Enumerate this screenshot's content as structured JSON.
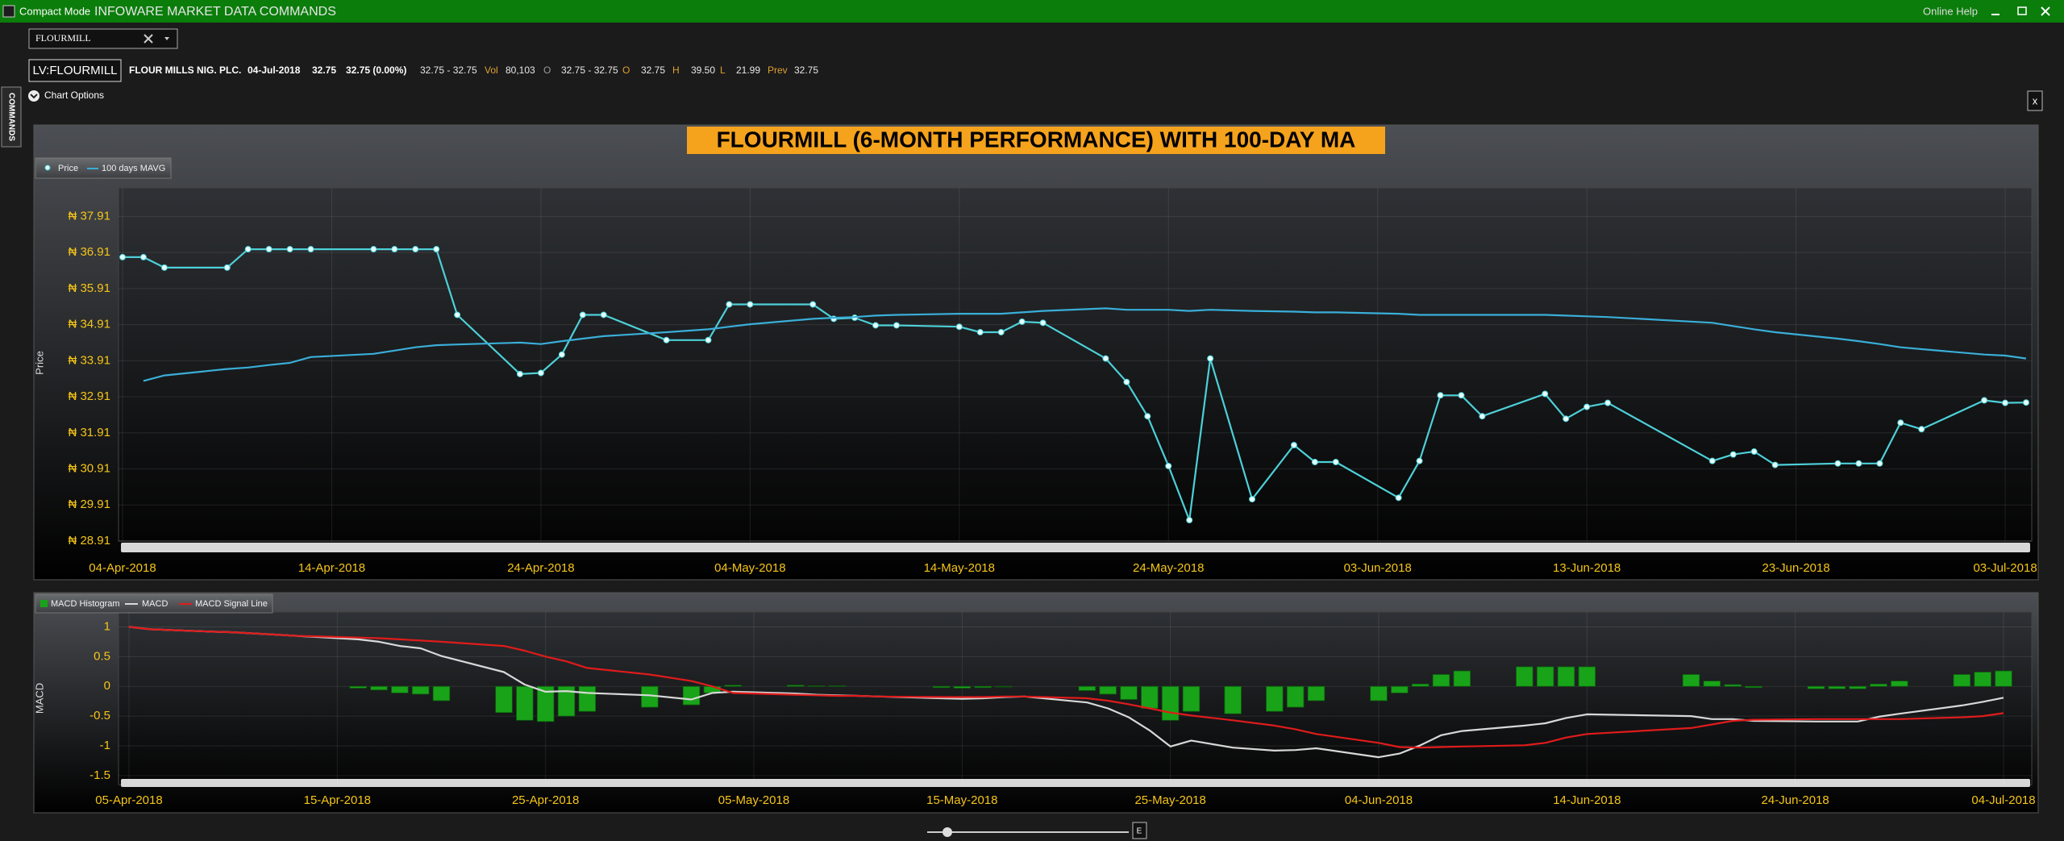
{
  "window": {
    "compact_mode": "Compact Mode",
    "title": "INFOWARE MARKET DATA COMMANDS",
    "online_help": "Online Help"
  },
  "search": {
    "value": "FLOURMILL"
  },
  "quote": {
    "symbol": "LV:FLOURMILL",
    "name": "FLOUR MILLS NIG. PLC.",
    "date": "04-Jul-2018",
    "price": "32.75",
    "change": "32.75 (0.00%)",
    "range": "32.75 - 32.75",
    "vol_label": "Vol",
    "volume": "80,103",
    "bid_ask_label": "O",
    "bid_ask": "32.75 - 32.75",
    "open_label": "O",
    "open": "32.75",
    "high_label": "H",
    "high": "39.50",
    "low_label": "L",
    "low": "21.99",
    "prev_label": "Prev",
    "prev": "32.75"
  },
  "chart_options": "Chart Options",
  "commands_tab": "COMMANDS",
  "close_button": "x",
  "slider_button": "E",
  "chart_data": [
    {
      "type": "line",
      "title": "FLOURMILL (6-MONTH PERFORMANCE) WITH 100-DAY MA",
      "y_label": "Price",
      "x": [
        "2018-04-04",
        "2018-04-05",
        "2018-04-06",
        "2018-04-09",
        "2018-04-10",
        "2018-04-11",
        "2018-04-12",
        "2018-04-13",
        "2018-04-16",
        "2018-04-17",
        "2018-04-18",
        "2018-04-19",
        "2018-04-20",
        "2018-04-23",
        "2018-04-24",
        "2018-04-25",
        "2018-04-26",
        "2018-04-27",
        "2018-04-30",
        "2018-05-02",
        "2018-05-03",
        "2018-05-04",
        "2018-05-07",
        "2018-05-08",
        "2018-05-09",
        "2018-05-10",
        "2018-05-11",
        "2018-05-14",
        "2018-05-15",
        "2018-05-16",
        "2018-05-17",
        "2018-05-18",
        "2018-05-21",
        "2018-05-22",
        "2018-05-23",
        "2018-05-24",
        "2018-05-25",
        "2018-05-26",
        "2018-05-28",
        "2018-05-30",
        "2018-05-31",
        "2018-06-01",
        "2018-06-04",
        "2018-06-05",
        "2018-06-06",
        "2018-06-07",
        "2018-06-08",
        "2018-06-11",
        "2018-06-12",
        "2018-06-13",
        "2018-06-14",
        "2018-06-19",
        "2018-06-20",
        "2018-06-21",
        "2018-06-22",
        "2018-06-25",
        "2018-06-26",
        "2018-06-27",
        "2018-06-28",
        "2018-06-29",
        "2018-07-02",
        "2018-07-03",
        "2018-07-04"
      ],
      "series": [
        {
          "name": "Price",
          "color": "#4dd0d8",
          "marker_color": "#e6ffff",
          "values": [
            36.78,
            36.78,
            36.49,
            36.49,
            37,
            37,
            37,
            37,
            37,
            37,
            37,
            37,
            35.18,
            33.54,
            33.57,
            34.08,
            35.18,
            35.18,
            34.48,
            34.48,
            35.47,
            35.47,
            35.47,
            35.07,
            35.1,
            34.89,
            34.89,
            34.85,
            34.7,
            34.7,
            34.99,
            34.96,
            33.97,
            33.32,
            32.37,
            30.99,
            29.49,
            33.97,
            30.07,
            31.57,
            31.1,
            31.1,
            30.11,
            31.13,
            32.95,
            32.95,
            32.37,
            32.99,
            32.3,
            32.63,
            32.74,
            31.13,
            31.31,
            31.39,
            31.02,
            31.06,
            31.06,
            31.06,
            32.19,
            32.01,
            32.81,
            32.74,
            32.75
          ]
        },
        {
          "name": "100 days MAVG",
          "color": "#3aaed8",
          "values": [
            null,
            33.35,
            33.5,
            33.68,
            33.72,
            33.79,
            33.85,
            34.01,
            34.1,
            34.19,
            34.28,
            34.34,
            34.36,
            34.41,
            34.37,
            34.45,
            34.52,
            34.59,
            34.7,
            34.78,
            34.85,
            34.92,
            35.07,
            35.1,
            35.12,
            35.16,
            35.18,
            35.21,
            35.21,
            35.21,
            35.25,
            35.29,
            35.36,
            35.32,
            35.32,
            35.32,
            35.29,
            35.32,
            35.29,
            35.27,
            35.25,
            35.25,
            35.21,
            35.18,
            35.18,
            35.18,
            35.18,
            35.18,
            35.16,
            35.14,
            35.12,
            34.96,
            34.87,
            34.78,
            34.7,
            34.52,
            34.45,
            34.37,
            34.28,
            34.23,
            34.08,
            34.05,
            33.97
          ]
        }
      ],
      "xlim": [
        "2018-04-04",
        "2018-07-04"
      ],
      "xticks": [
        {
          "value": "2018-04-04",
          "label": "04-Apr-2018"
        },
        {
          "value": "2018-04-14",
          "label": "14-Apr-2018"
        },
        {
          "value": "2018-04-24",
          "label": "24-Apr-2018"
        },
        {
          "value": "2018-05-04",
          "label": "04-May-2018"
        },
        {
          "value": "2018-05-14",
          "label": "14-May-2018"
        },
        {
          "value": "2018-05-24",
          "label": "24-May-2018"
        },
        {
          "value": "2018-06-03",
          "label": "03-Jun-2018"
        },
        {
          "value": "2018-06-13",
          "label": "13-Jun-2018"
        },
        {
          "value": "2018-06-23",
          "label": "23-Jun-2018"
        },
        {
          "value": "2018-07-03",
          "label": "03-Jul-2018"
        }
      ],
      "ylim": [
        28.91,
        38.7
      ],
      "yticks": [
        {
          "value": 28.91,
          "label": "₦ 28.91"
        },
        {
          "value": 29.91,
          "label": "₦ 29.91"
        },
        {
          "value": 30.91,
          "label": "₦ 30.91"
        },
        {
          "value": 31.91,
          "label": "₦ 31.91"
        },
        {
          "value": 32.91,
          "label": "₦ 32.91"
        },
        {
          "value": 33.91,
          "label": "₦ 33.91"
        },
        {
          "value": 34.91,
          "label": "₦ 34.91"
        },
        {
          "value": 35.91,
          "label": "₦ 35.91"
        },
        {
          "value": 36.91,
          "label": "₦ 36.91"
        },
        {
          "value": 37.91,
          "label": "₦ 37.91"
        }
      ],
      "grid": true
    },
    {
      "type": "combo",
      "y_label": "MACD",
      "x": [
        "2018-04-05",
        "2018-04-06",
        "2018-04-09",
        "2018-04-10",
        "2018-04-11",
        "2018-04-12",
        "2018-04-13",
        "2018-04-16",
        "2018-04-17",
        "2018-04-18",
        "2018-04-19",
        "2018-04-20",
        "2018-04-23",
        "2018-04-24",
        "2018-04-25",
        "2018-04-26",
        "2018-04-27",
        "2018-04-30",
        "2018-05-02",
        "2018-05-03",
        "2018-05-04",
        "2018-05-07",
        "2018-05-08",
        "2018-05-09",
        "2018-05-10",
        "2018-05-11",
        "2018-05-14",
        "2018-05-15",
        "2018-05-16",
        "2018-05-17",
        "2018-05-18",
        "2018-05-21",
        "2018-05-22",
        "2018-05-23",
        "2018-05-24",
        "2018-05-25",
        "2018-05-26",
        "2018-05-28",
        "2018-05-30",
        "2018-05-31",
        "2018-06-01",
        "2018-06-04",
        "2018-06-05",
        "2018-06-06",
        "2018-06-07",
        "2018-06-08",
        "2018-06-11",
        "2018-06-12",
        "2018-06-13",
        "2018-06-14",
        "2018-06-19",
        "2018-06-20",
        "2018-06-21",
        "2018-06-22",
        "2018-06-25",
        "2018-06-26",
        "2018-06-27",
        "2018-06-28",
        "2018-06-29",
        "2018-07-02",
        "2018-07-03",
        "2018-07-04"
      ],
      "series": [
        {
          "name": "MACD Histogram",
          "type": "bar",
          "color": "#19a319",
          "values": [
            0,
            0,
            0,
            0,
            0,
            0,
            0,
            -0.03,
            -0.06,
            -0.11,
            -0.13,
            -0.24,
            -0.44,
            -0.57,
            -0.59,
            -0.5,
            -0.42,
            -0.35,
            -0.31,
            -0.11,
            0.02,
            0.02,
            0.01,
            0.01,
            0,
            0,
            -0.02,
            -0.03,
            -0.02,
            -0.01,
            0,
            -0.07,
            -0.13,
            -0.22,
            -0.37,
            -0.57,
            -0.42,
            -0.46,
            -0.42,
            -0.35,
            -0.24,
            -0.24,
            -0.11,
            0.04,
            0.2,
            0.26,
            0.33,
            0.33,
            0.33,
            0.33,
            0.2,
            0.09,
            0.03,
            -0.02,
            -0.04,
            -0.04,
            -0.04,
            0.04,
            0.09,
            0.2,
            0.24,
            0.26
          ]
        },
        {
          "name": "MACD",
          "type": "line",
          "color": "#d8d8d8",
          "values": [
            1,
            0.96,
            0.92,
            0.91,
            0.89,
            0.87,
            0.85,
            0.79,
            0.75,
            0.68,
            0.64,
            0.51,
            0.24,
            0.03,
            -0.09,
            -0.08,
            -0.11,
            -0.15,
            -0.22,
            -0.11,
            -0.09,
            -0.12,
            -0.14,
            -0.15,
            -0.16,
            -0.17,
            -0.2,
            -0.21,
            -0.2,
            -0.18,
            -0.17,
            -0.27,
            -0.37,
            -0.52,
            -0.74,
            -1.01,
            -0.91,
            -1.03,
            -1.08,
            -1.07,
            -1.04,
            -1.19,
            -1.13,
            -0.99,
            -0.82,
            -0.75,
            -0.66,
            -0.62,
            -0.53,
            -0.47,
            -0.5,
            -0.55,
            -0.55,
            -0.58,
            -0.59,
            -0.59,
            -0.59,
            -0.51,
            -0.46,
            -0.32,
            -0.26,
            -0.19
          ]
        },
        {
          "name": "MACD Signal Line",
          "type": "line",
          "color": "#e01b1b",
          "values": [
            1,
            0.96,
            0.92,
            0.91,
            0.89,
            0.87,
            0.85,
            0.82,
            0.81,
            0.79,
            0.77,
            0.75,
            0.68,
            0.6,
            0.5,
            0.42,
            0.31,
            0.2,
            0.09,
            0,
            -0.11,
            -0.14,
            -0.15,
            -0.16,
            -0.16,
            -0.17,
            -0.18,
            -0.18,
            -0.18,
            -0.17,
            -0.17,
            -0.2,
            -0.24,
            -0.3,
            -0.37,
            -0.44,
            -0.49,
            -0.57,
            -0.66,
            -0.72,
            -0.8,
            -0.95,
            -1.02,
            -1.03,
            -1.02,
            -1.01,
            -0.99,
            -0.95,
            -0.86,
            -0.8,
            -0.7,
            -0.64,
            -0.58,
            -0.56,
            -0.55,
            -0.55,
            -0.55,
            -0.55,
            -0.55,
            -0.52,
            -0.5,
            -0.45
          ]
        }
      ],
      "xlim": [
        "2018-04-05",
        "2018-07-04"
      ],
      "xticks": [
        {
          "value": "2018-04-05",
          "label": "05-Apr-2018"
        },
        {
          "value": "2018-04-15",
          "label": "15-Apr-2018"
        },
        {
          "value": "2018-04-25",
          "label": "25-Apr-2018"
        },
        {
          "value": "2018-05-05",
          "label": "05-May-2018"
        },
        {
          "value": "2018-05-15",
          "label": "15-May-2018"
        },
        {
          "value": "2018-05-25",
          "label": "25-May-2018"
        },
        {
          "value": "2018-06-04",
          "label": "04-Jun-2018"
        },
        {
          "value": "2018-06-14",
          "label": "14-Jun-2018"
        },
        {
          "value": "2018-06-24",
          "label": "24-Jun-2018"
        },
        {
          "value": "2018-07-04",
          "label": "04-Jul-2018"
        }
      ],
      "ylim": [
        -1.65,
        1.25
      ],
      "yticks": [
        -1.5,
        -1,
        -0.5,
        0,
        0.5,
        1
      ],
      "grid": true
    }
  ]
}
